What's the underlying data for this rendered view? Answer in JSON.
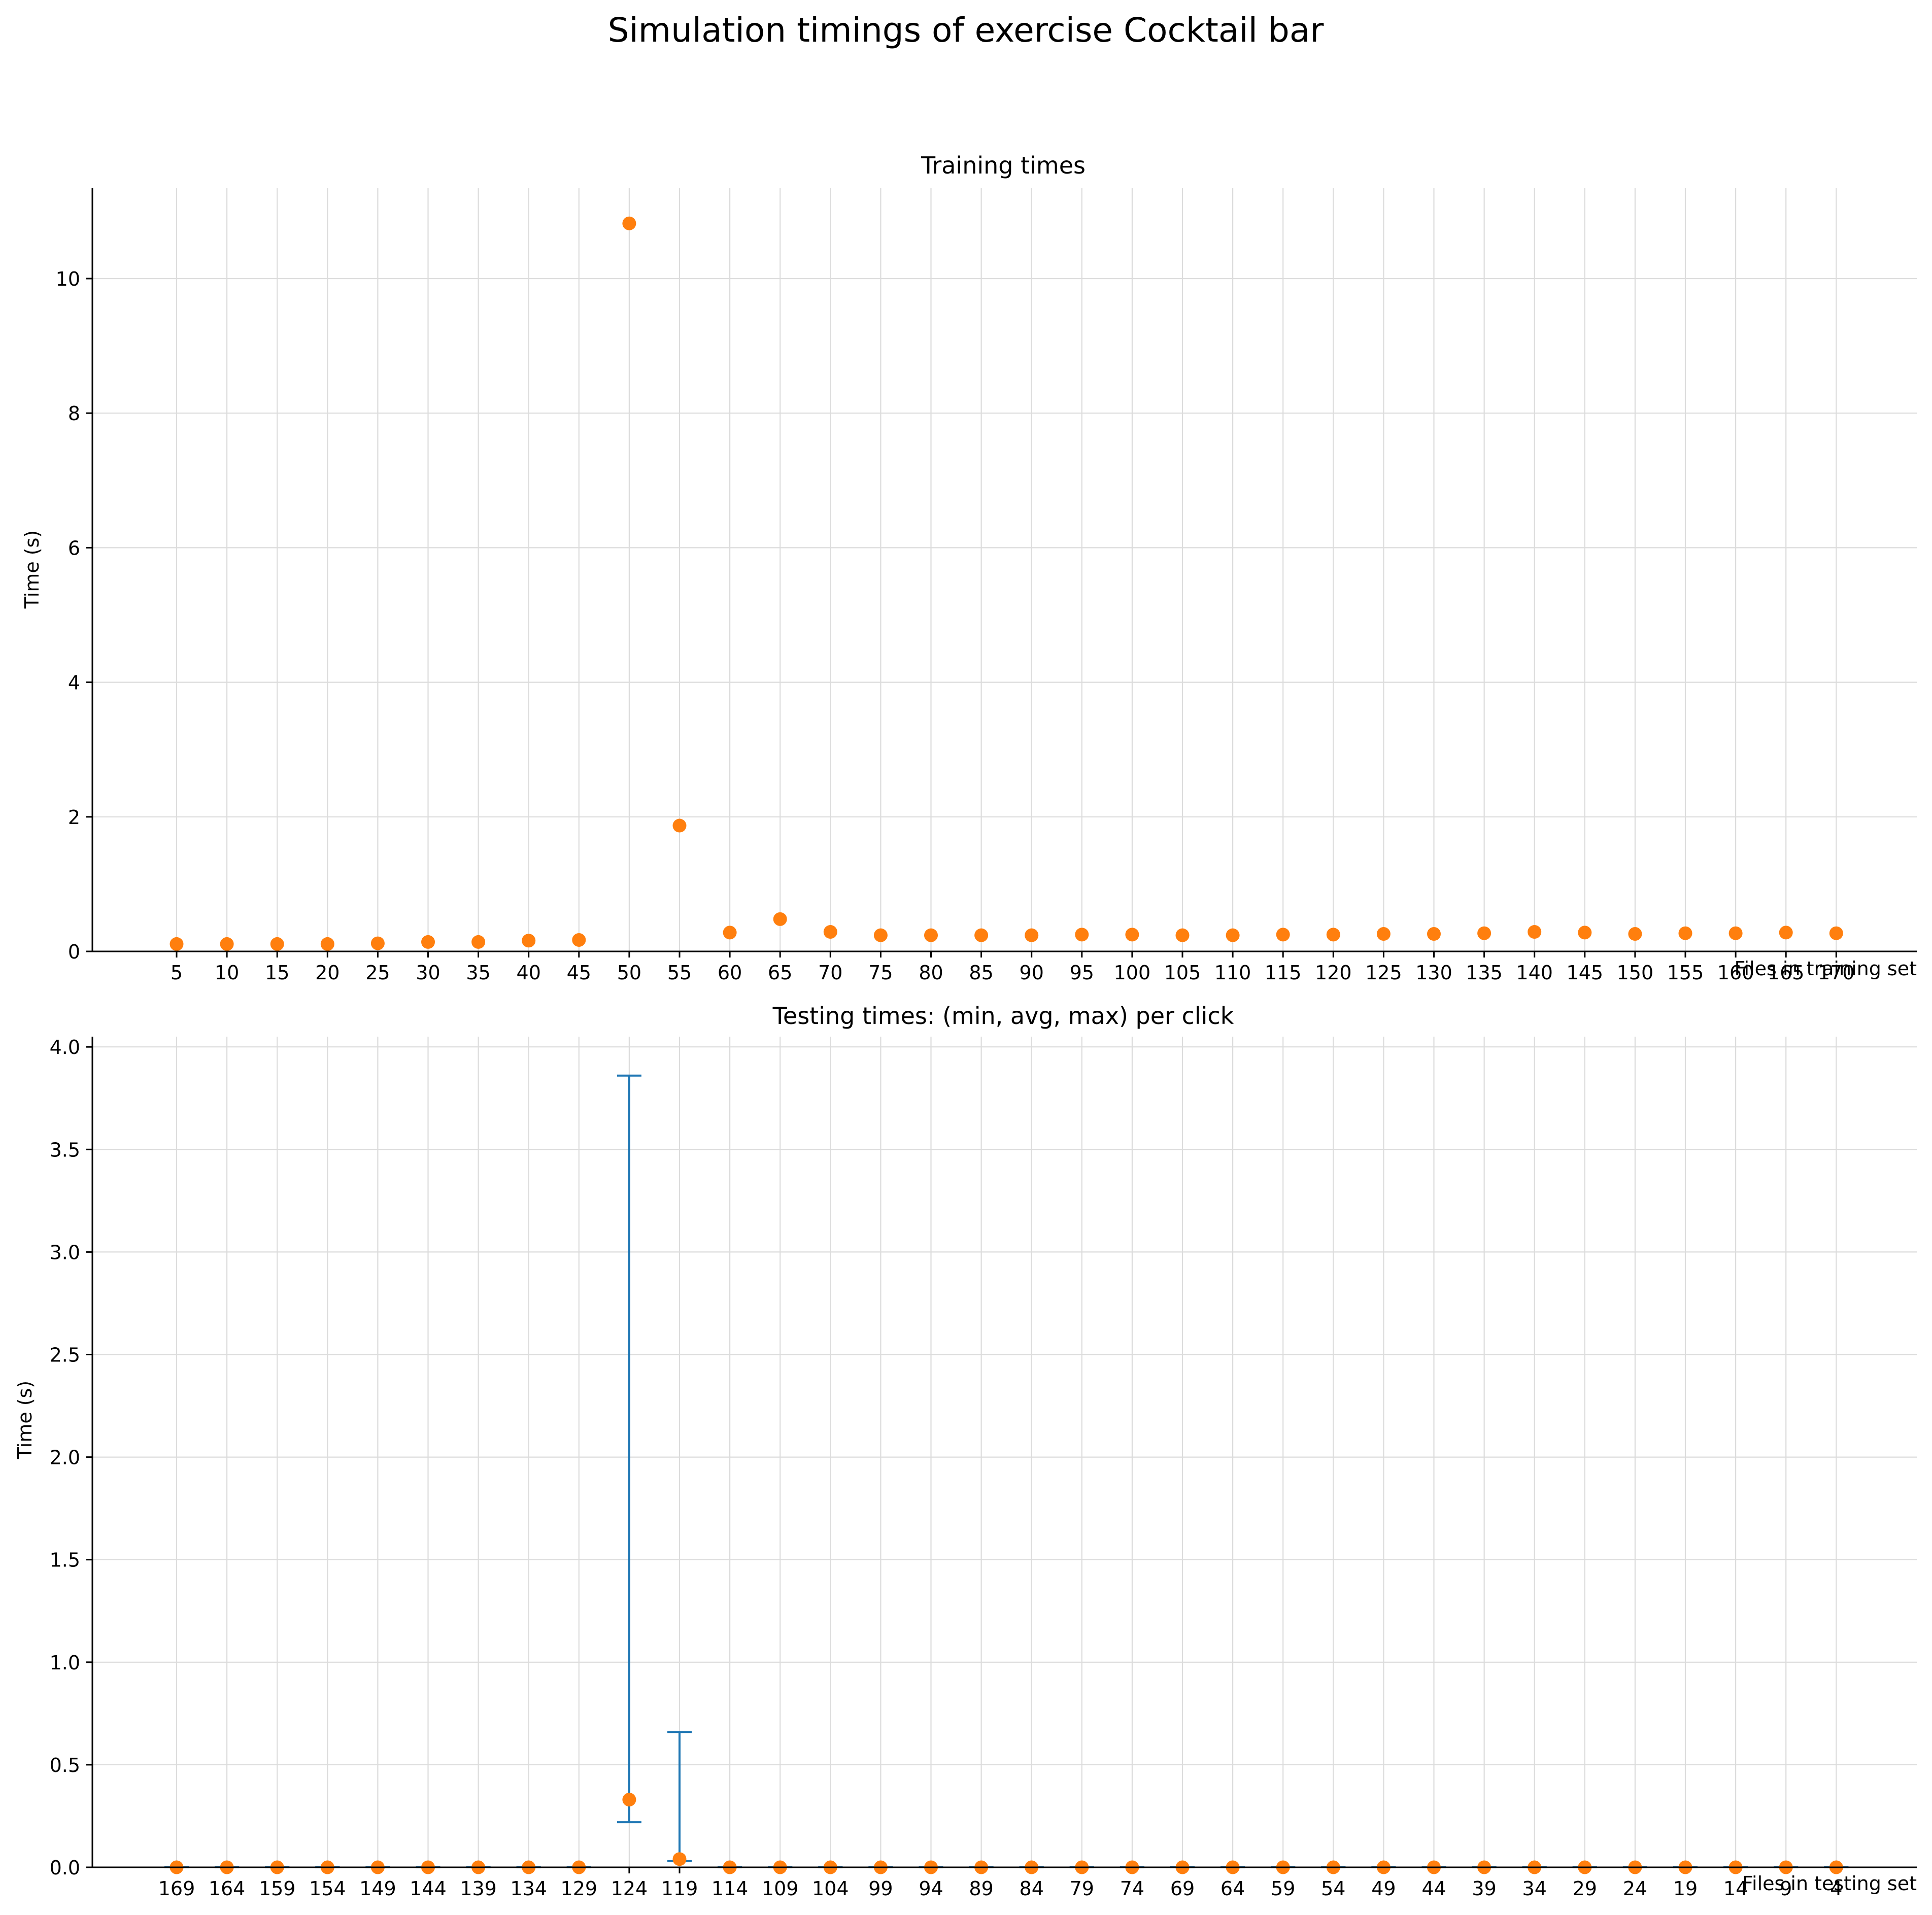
{
  "title": "Simulation timings of exercise Cocktail bar",
  "colors": {
    "point": "#ff7f0e",
    "errorbar": "#1f77b4",
    "grid": "#dcdcdc"
  },
  "chart_data": [
    {
      "type": "scatter",
      "title": "Training times",
      "xlabel": "Files in training set",
      "ylabel": "Time (s)",
      "grid": true,
      "categories": [
        "5",
        "10",
        "15",
        "20",
        "25",
        "30",
        "35",
        "40",
        "45",
        "50",
        "55",
        "60",
        "65",
        "70",
        "75",
        "80",
        "85",
        "90",
        "95",
        "100",
        "105",
        "110",
        "115",
        "120",
        "125",
        "130",
        "135",
        "140",
        "145",
        "150",
        "155",
        "160",
        "165",
        "170"
      ],
      "values": [
        0.11,
        0.11,
        0.11,
        0.11,
        0.12,
        0.14,
        0.14,
        0.16,
        0.17,
        10.82,
        1.87,
        0.28,
        0.48,
        0.29,
        0.24,
        0.24,
        0.24,
        0.24,
        0.25,
        0.25,
        0.24,
        0.24,
        0.25,
        0.25,
        0.26,
        0.26,
        0.27,
        0.29,
        0.28,
        0.26,
        0.27,
        0.27,
        0.28,
        0.27
      ],
      "ylim": [
        0,
        11.35
      ],
      "yticks": [
        0,
        2,
        4,
        6,
        8,
        10
      ]
    },
    {
      "type": "scatter",
      "title": "Testing times: (min, avg, max) per click",
      "xlabel": "Files in testing set",
      "ylabel": "Time (s)",
      "grid": true,
      "categories": [
        "169",
        "164",
        "159",
        "154",
        "149",
        "144",
        "139",
        "134",
        "129",
        "124",
        "119",
        "114",
        "109",
        "104",
        "99",
        "94",
        "89",
        "84",
        "79",
        "74",
        "69",
        "64",
        "59",
        "54",
        "49",
        "44",
        "39",
        "34",
        "29",
        "24",
        "19",
        "14",
        "9",
        "4"
      ],
      "avg": [
        0,
        0,
        0,
        0,
        0,
        0,
        0,
        0,
        0,
        0.33,
        0.04,
        0,
        0,
        0,
        0,
        0,
        0,
        0,
        0,
        0,
        0,
        0,
        0,
        0,
        0,
        0,
        0,
        0,
        0,
        0,
        0,
        0,
        0,
        0
      ],
      "min": [
        0,
        0,
        0,
        0,
        0,
        0,
        0,
        0,
        0,
        0.22,
        0.03,
        0,
        0,
        0,
        0,
        0,
        0,
        0,
        0,
        0,
        0,
        0,
        0,
        0,
        0,
        0,
        0,
        0,
        0,
        0,
        0,
        0,
        0,
        0
      ],
      "max": [
        0,
        0,
        0,
        0,
        0,
        0,
        0,
        0,
        0,
        3.86,
        0.66,
        0,
        0,
        0,
        0,
        0,
        0,
        0,
        0,
        0,
        0,
        0,
        0,
        0,
        0,
        0,
        0,
        0,
        0,
        0,
        0,
        0,
        0,
        0
      ],
      "ylim": [
        0,
        4.05
      ],
      "yticks": [
        "0.0",
        "0.5",
        "1.0",
        "1.5",
        "2.0",
        "2.5",
        "3.0",
        "3.5",
        "4.0"
      ]
    }
  ]
}
